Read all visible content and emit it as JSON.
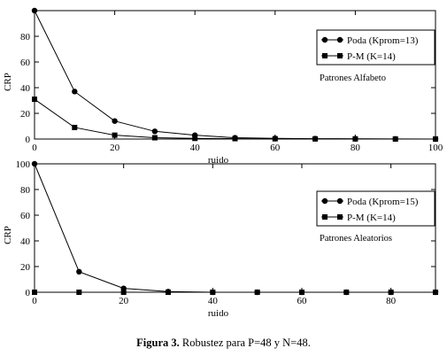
{
  "caption": {
    "label": "Figura 3.",
    "text": " Robustez para P=48 y N=48."
  },
  "chart_data": [
    {
      "type": "line",
      "xlabel": "ruido",
      "ylabel": "CRP",
      "xlim": [
        0,
        100
      ],
      "ylim": [
        0,
        100
      ],
      "xticks": [
        0,
        20,
        40,
        60,
        80,
        100
      ],
      "yticks": [
        0,
        20,
        40,
        60,
        80,
        100
      ],
      "ytick_labels": [
        "0",
        "20",
        "40",
        "60",
        "80",
        ""
      ],
      "annotation": "Patrones Alfabeto",
      "legend_position": "top-right",
      "series": [
        {
          "name": "Poda (Kprom=13)",
          "marker": "circle",
          "x": [
            0,
            10,
            20,
            30,
            40,
            50,
            60,
            70,
            80,
            90,
            100
          ],
          "y": [
            100,
            37,
            14,
            6,
            3,
            1,
            0.5,
            0.3,
            0.2,
            0.1,
            0
          ]
        },
        {
          "name": "P-M (K=14)",
          "marker": "square",
          "x": [
            0,
            10,
            20,
            30,
            40,
            50,
            60,
            70,
            80,
            90,
            100
          ],
          "y": [
            31,
            9,
            3,
            1,
            0.5,
            0.3,
            0.2,
            0.1,
            0.1,
            0,
            0
          ]
        }
      ]
    },
    {
      "type": "line",
      "xlabel": "ruido",
      "ylabel": "CRP",
      "xlim": [
        0,
        90
      ],
      "ylim": [
        0,
        100
      ],
      "xticks": [
        0,
        20,
        40,
        60,
        80
      ],
      "yticks": [
        0,
        20,
        40,
        60,
        80,
        100
      ],
      "ytick_labels": [
        "0",
        "20",
        "40",
        "60",
        "80",
        "100"
      ],
      "annotation": "Patrones Aleatorios",
      "legend_position": "top-right",
      "series": [
        {
          "name": "Poda (Kprom=15)",
          "marker": "circle",
          "x": [
            0,
            10,
            20,
            30,
            40,
            50,
            60,
            70,
            80,
            90
          ],
          "y": [
            100,
            16,
            3,
            0.5,
            0,
            0,
            0,
            0,
            0,
            0
          ]
        },
        {
          "name": "P-M (K=14)",
          "marker": "square",
          "x": [
            0,
            10,
            20,
            30,
            40,
            50,
            60,
            70,
            80,
            90
          ],
          "y": [
            0,
            0,
            0,
            0,
            0,
            0,
            0,
            0,
            0,
            0
          ]
        }
      ]
    }
  ]
}
